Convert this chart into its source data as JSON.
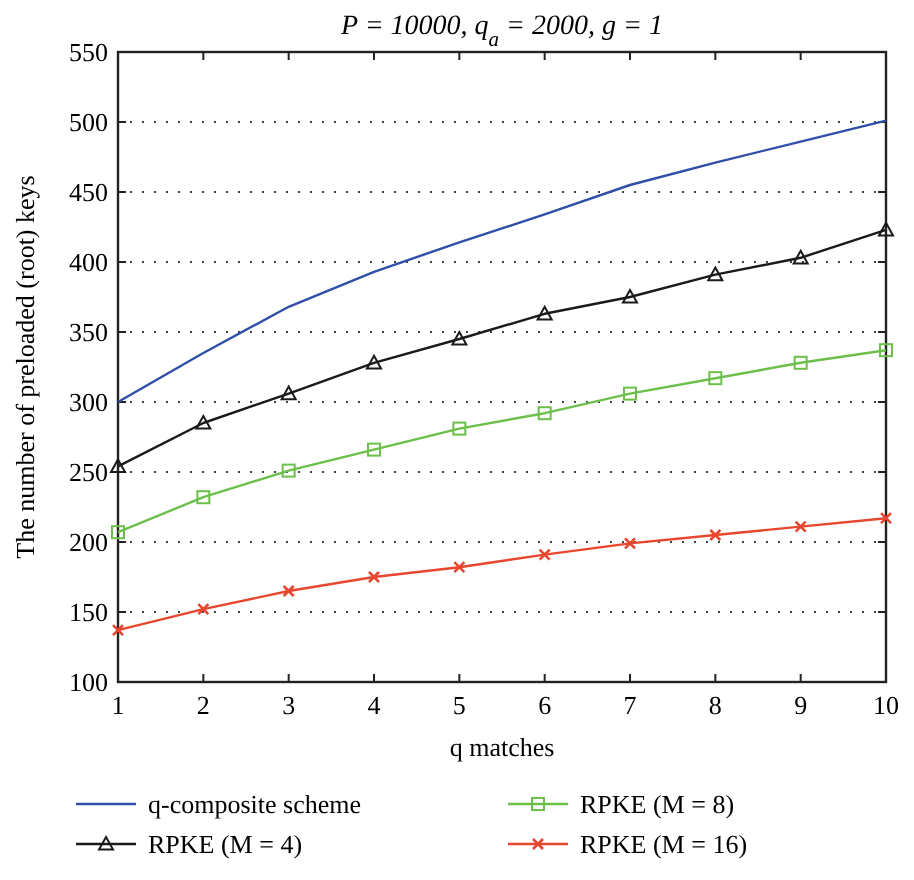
{
  "chart_data": {
    "type": "line",
    "title": "P = 10000, q$_{a}$ = 2000, g = 1",
    "xlabel": "q matches",
    "ylabel": "The number of preloaded (root) keys",
    "x": [
      1,
      2,
      3,
      4,
      5,
      6,
      7,
      8,
      9,
      10
    ],
    "series": [
      {
        "name": "q-composite scheme",
        "color": "#2f4fa8",
        "marker": "none",
        "values": [
          300,
          335,
          368,
          393,
          414,
          434,
          455,
          471,
          486,
          501
        ]
      },
      {
        "name": "RPKE (M = 4)",
        "color": "#1a1a1a",
        "marker": "triangle",
        "values": [
          254,
          285,
          306,
          328,
          345,
          363,
          375,
          391,
          403,
          423
        ]
      },
      {
        "name": "RPKE (M = 8)",
        "color": "#6cbf4a",
        "marker": "square",
        "values": [
          207,
          232,
          251,
          266,
          281,
          292,
          306,
          317,
          328,
          337
        ]
      },
      {
        "name": "RPKE (M = 16)",
        "color": "#e8462e",
        "marker": "cross",
        "values": [
          137,
          152,
          165,
          175,
          182,
          191,
          199,
          205,
          211,
          217
        ]
      }
    ],
    "xlim": [
      1,
      10
    ],
    "xticks": [
      1,
      2,
      3,
      4,
      5,
      6,
      7,
      8,
      9,
      10
    ],
    "ylim": [
      100,
      550
    ],
    "yticks": [
      100,
      150,
      200,
      250,
      300,
      350,
      400,
      450,
      500,
      550
    ],
    "grid": "y",
    "legend": "bottom",
    "line_style": "solid"
  }
}
